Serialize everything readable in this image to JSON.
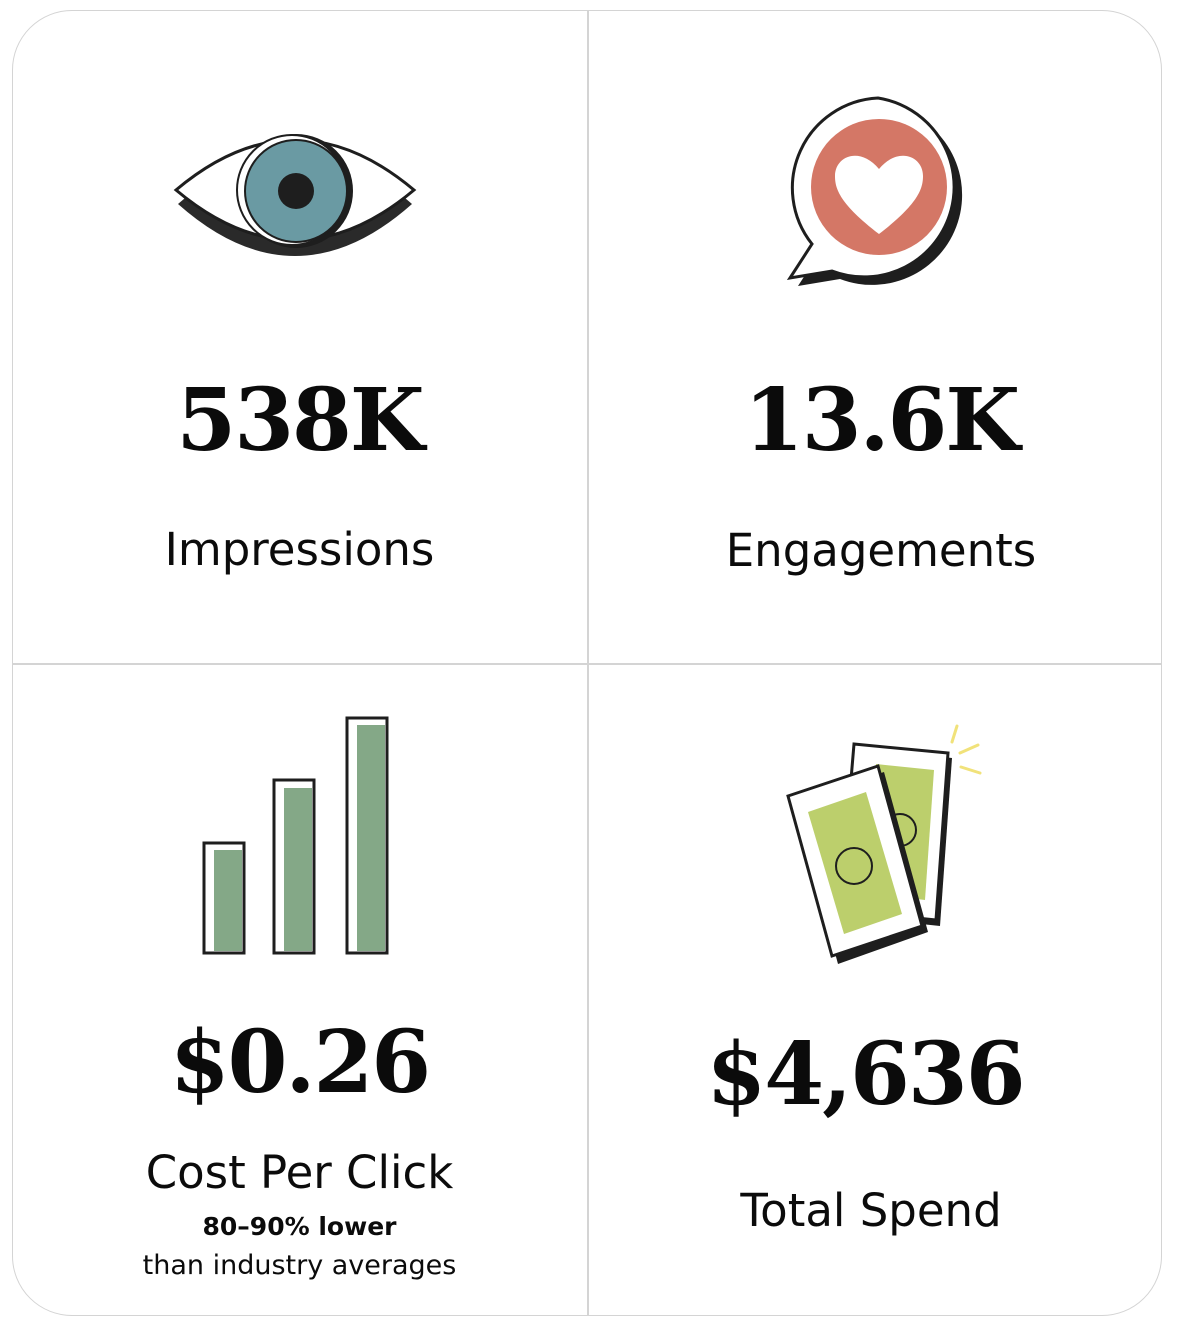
{
  "metrics": [
    {
      "value": "538K",
      "label": "Impressions",
      "icon": "eye-icon"
    },
    {
      "value": "13.6K",
      "label": "Engagements",
      "icon": "heart-speech-bubble-icon"
    },
    {
      "value": "$0.26",
      "label": "Cost Per Click",
      "note_bold": "80–90% lower",
      "note": "than industry averages",
      "icon": "bar-chart-icon"
    },
    {
      "value": "$4,636",
      "label": "Total Spend",
      "icon": "money-bills-icon"
    }
  ],
  "colors": {
    "eye_iris": "#6a9aa3",
    "heart_circle": "#d47766",
    "bar_fill": "#84a887",
    "bill_fill": "#bccf6c",
    "sparkle": "#f1e27a",
    "outline": "#1e1e1e",
    "divider": "#d4d4d4"
  }
}
